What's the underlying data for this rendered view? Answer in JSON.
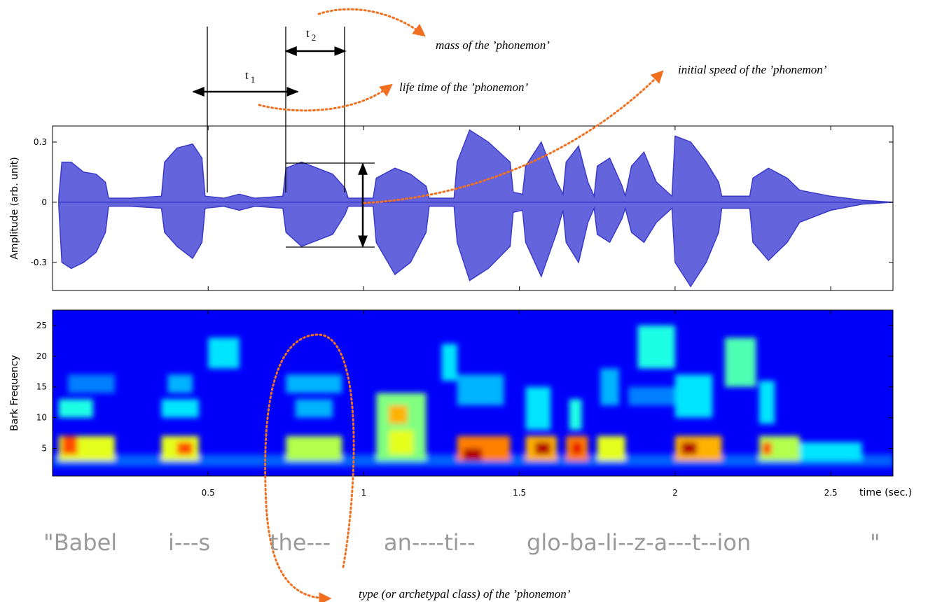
{
  "chart_data": [
    {
      "type": "area",
      "ylabel": "Amplitude (arb. unit)",
      "x": [
        0.02,
        0.03,
        0.06,
        0.1,
        0.14,
        0.17,
        0.18,
        0.25,
        0.35,
        0.36,
        0.4,
        0.45,
        0.48,
        0.49,
        0.55,
        0.6,
        0.65,
        0.74,
        0.75,
        0.8,
        0.9,
        0.94,
        0.95,
        1.03,
        1.04,
        1.1,
        1.15,
        1.2,
        1.21,
        1.29,
        1.3,
        1.34,
        1.4,
        1.47,
        1.48,
        1.51,
        1.52,
        1.57,
        1.62,
        1.64,
        1.65,
        1.69,
        1.72,
        1.74,
        1.75,
        1.79,
        1.83,
        1.84,
        1.86,
        1.9,
        1.94,
        1.99,
        2.0,
        2.05,
        2.1,
        2.14,
        2.15,
        2.24,
        2.25,
        2.3,
        2.36,
        2.4,
        2.5,
        2.6,
        2.7
      ],
      "series": [
        {
          "name": "upper",
          "color": "#3b3bc8",
          "values": [
            0.02,
            0.2,
            0.2,
            0.15,
            0.14,
            0.1,
            0.02,
            0.02,
            0.03,
            0.2,
            0.27,
            0.29,
            0.22,
            0.03,
            0.02,
            0.04,
            0.02,
            0.03,
            0.17,
            0.2,
            0.14,
            0.07,
            0.02,
            0.02,
            0.12,
            0.17,
            0.14,
            0.08,
            0.02,
            0.02,
            0.2,
            0.36,
            0.3,
            0.2,
            0.05,
            0.04,
            0.18,
            0.3,
            0.1,
            0.04,
            0.2,
            0.28,
            0.1,
            0.03,
            0.18,
            0.22,
            0.08,
            0.03,
            0.18,
            0.25,
            0.1,
            0.03,
            0.33,
            0.3,
            0.2,
            0.1,
            0.03,
            0.03,
            0.12,
            0.17,
            0.12,
            0.06,
            0.03,
            0.01,
            0
          ]
        },
        {
          "name": "lower",
          "color": "#3b3bc8",
          "values": [
            -0.02,
            -0.3,
            -0.33,
            -0.3,
            -0.25,
            -0.15,
            -0.02,
            -0.02,
            -0.03,
            -0.15,
            -0.22,
            -0.28,
            -0.2,
            -0.03,
            -0.02,
            -0.04,
            -0.02,
            -0.03,
            -0.15,
            -0.22,
            -0.16,
            -0.06,
            -0.02,
            -0.02,
            -0.2,
            -0.36,
            -0.3,
            -0.15,
            -0.02,
            -0.02,
            -0.2,
            -0.39,
            -0.33,
            -0.22,
            -0.05,
            -0.04,
            -0.2,
            -0.37,
            -0.15,
            -0.04,
            -0.2,
            -0.3,
            -0.1,
            -0.03,
            -0.16,
            -0.2,
            -0.08,
            -0.03,
            -0.15,
            -0.2,
            -0.1,
            -0.03,
            -0.3,
            -0.42,
            -0.3,
            -0.15,
            -0.03,
            -0.03,
            -0.2,
            -0.29,
            -0.2,
            -0.1,
            -0.04,
            -0.01,
            0
          ]
        }
      ],
      "fill": "#6464dc",
      "xlim": [
        0,
        2.7
      ],
      "xticks": [
        0.5,
        1,
        1.5,
        2,
        2.5
      ],
      "ylim": [
        -0.44,
        0.38
      ],
      "yticks": [
        -0.3,
        0,
        0.3
      ]
    },
    {
      "type": "heatmap",
      "ylabel": "Bark Frequency",
      "xlabel": "time (sec.)",
      "background_level": 0.12,
      "cells": [
        [
          0,
          2.7,
          2,
          4,
          0.22
        ],
        [
          0.02,
          0.2,
          3,
          7,
          0.6
        ],
        [
          0.03,
          0.08,
          4,
          7,
          0.8
        ],
        [
          0.02,
          0.13,
          10,
          13,
          0.4
        ],
        [
          0.05,
          0.2,
          14,
          17,
          0.25
        ],
        [
          0.35,
          0.47,
          3,
          7,
          0.6
        ],
        [
          0.4,
          0.45,
          4,
          6,
          0.8
        ],
        [
          0.35,
          0.47,
          10,
          13,
          0.35
        ],
        [
          0.37,
          0.45,
          14,
          17,
          0.3
        ],
        [
          0.5,
          0.6,
          18,
          23,
          0.35
        ],
        [
          0.75,
          0.93,
          3,
          7,
          0.55
        ],
        [
          0.75,
          0.93,
          14,
          17,
          0.3
        ],
        [
          0.78,
          0.9,
          10,
          13,
          0.3
        ],
        [
          1.04,
          1.2,
          3,
          14,
          0.5
        ],
        [
          1.08,
          1.14,
          9,
          12,
          0.7
        ],
        [
          1.08,
          1.16,
          4,
          8,
          0.6
        ],
        [
          1.25,
          1.3,
          16,
          22,
          0.35
        ],
        [
          1.3,
          1.47,
          3,
          7,
          0.75
        ],
        [
          1.32,
          1.38,
          3,
          5,
          0.95
        ],
        [
          1.3,
          1.45,
          12,
          17,
          0.3
        ],
        [
          1.52,
          1.62,
          3,
          7,
          0.7
        ],
        [
          1.55,
          1.6,
          4,
          6,
          0.95
        ],
        [
          1.52,
          1.6,
          8,
          15,
          0.35
        ],
        [
          1.65,
          1.72,
          3,
          7,
          0.75
        ],
        [
          1.67,
          1.7,
          4,
          6,
          0.9
        ],
        [
          1.66,
          1.7,
          8,
          13,
          0.4
        ],
        [
          1.75,
          1.84,
          3,
          7,
          0.6
        ],
        [
          1.76,
          1.82,
          12,
          18,
          0.3
        ],
        [
          1.88,
          2.0,
          18,
          25,
          0.4
        ],
        [
          1.85,
          2.0,
          12,
          15,
          0.25
        ],
        [
          2.0,
          2.15,
          3,
          7,
          0.7
        ],
        [
          2.02,
          2.07,
          4,
          6,
          0.95
        ],
        [
          2.0,
          2.12,
          10,
          17,
          0.35
        ],
        [
          2.16,
          2.26,
          15,
          23,
          0.45
        ],
        [
          2.27,
          2.4,
          3,
          7,
          0.55
        ],
        [
          2.28,
          2.31,
          4,
          6,
          0.8
        ],
        [
          2.27,
          2.32,
          9,
          16,
          0.35
        ],
        [
          2.4,
          2.6,
          3,
          6,
          0.35
        ]
      ],
      "xlim": [
        0,
        2.7
      ],
      "xticks": [
        0.5,
        1,
        1.5,
        2,
        2.5
      ],
      "ylim": [
        0.5,
        27.5
      ],
      "yticks": [
        5,
        10,
        15,
        20,
        25
      ]
    }
  ],
  "annotations": {
    "t1": {
      "base": "t",
      "sub": "1"
    },
    "t2": {
      "base": "t",
      "sub": "2"
    },
    "mass": "mass of the ’phonemon’",
    "life_time": "life time of the ’phonemon’",
    "initial_speed": "initial speed of the ’phonemon’",
    "type": "type (or archetypal class) of the ’phonemon’"
  },
  "transcript": [
    "\"Babel",
    "i---s",
    "the---",
    "an----ti--",
    "glo-ba-li--z-a---t--ion",
    "\""
  ]
}
